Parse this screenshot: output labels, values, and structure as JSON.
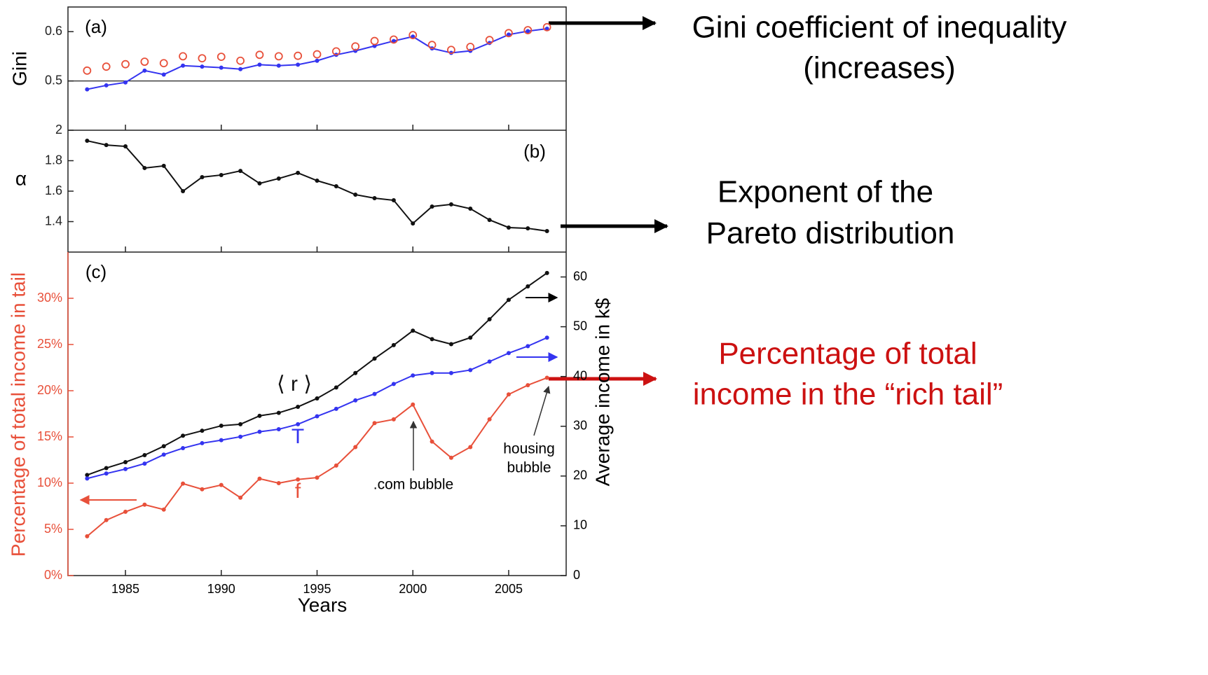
{
  "chart_data": [
    {
      "type": "line",
      "label": "(a)",
      "ylabel": "Gini",
      "x": [
        1983,
        1984,
        1985,
        1986,
        1987,
        1988,
        1989,
        1990,
        1991,
        1992,
        1993,
        1994,
        1995,
        1996,
        1997,
        1998,
        1999,
        2000,
        2001,
        2002,
        2003,
        2004,
        2005,
        2006,
        2007
      ],
      "xlim": [
        1982,
        2008
      ],
      "ylim": [
        0.4,
        0.65
      ],
      "yticks": [
        0.5,
        0.6
      ],
      "reference_line": 0.5,
      "series": [
        {
          "color": "#3434f0",
          "line": true,
          "marker": "dot",
          "values": [
            0.483,
            0.491,
            0.497,
            0.521,
            0.513,
            0.531,
            0.529,
            0.527,
            0.524,
            0.533,
            0.531,
            0.533,
            0.541,
            0.553,
            0.561,
            0.571,
            0.581,
            0.59,
            0.566,
            0.557,
            0.561,
            0.577,
            0.594,
            0.601,
            0.606
          ]
        },
        {
          "color": "#e8503a",
          "line": false,
          "marker": "open-circle",
          "values": [
            0.521,
            0.529,
            0.534,
            0.539,
            0.536,
            0.55,
            0.546,
            0.549,
            0.541,
            0.553,
            0.55,
            0.551,
            0.554,
            0.56,
            0.57,
            0.581,
            0.584,
            0.593,
            0.573,
            0.563,
            0.569,
            0.583,
            0.597,
            0.603,
            0.609
          ]
        }
      ]
    },
    {
      "type": "line",
      "label": "(b)",
      "ylabel": "α",
      "x": [
        1983,
        1984,
        1985,
        1986,
        1987,
        1988,
        1989,
        1990,
        1991,
        1992,
        1993,
        1994,
        1995,
        1996,
        1997,
        1998,
        1999,
        2000,
        2001,
        2002,
        2003,
        2004,
        2005,
        2006,
        2007
      ],
      "xlim": [
        1982,
        2008
      ],
      "ylim": [
        1.2,
        2.0
      ],
      "yticks": [
        1.4,
        1.6,
        1.8,
        2
      ],
      "series": [
        {
          "color": "#111111",
          "line": true,
          "marker": "dot",
          "values": [
            1.931,
            1.903,
            1.894,
            1.752,
            1.766,
            1.6,
            1.692,
            1.706,
            1.733,
            1.651,
            1.683,
            1.72,
            1.669,
            1.632,
            1.577,
            1.554,
            1.54,
            1.388,
            1.499,
            1.513,
            1.485,
            1.411,
            1.361,
            1.356,
            1.338
          ]
        }
      ]
    },
    {
      "type": "line",
      "label": "(c)",
      "ylabel": "Percentage of total income in tail",
      "y2label": "Average income in k$",
      "xlabel": "Years",
      "x": [
        1983,
        1984,
        1985,
        1986,
        1987,
        1988,
        1989,
        1990,
        1991,
        1992,
        1993,
        1994,
        1995,
        1996,
        1997,
        1998,
        1999,
        2000,
        2001,
        2002,
        2003,
        2004,
        2005,
        2006,
        2007
      ],
      "xlim": [
        1982,
        2008
      ],
      "xticks": [
        1985,
        1990,
        1995,
        2000,
        2005
      ],
      "ylim": [
        0,
        35
      ],
      "yticks": [
        {
          "value": 0,
          "label": "0%"
        },
        {
          "value": 5,
          "label": "5%"
        },
        {
          "value": 10,
          "label": "10%"
        },
        {
          "value": 15,
          "label": "15%"
        },
        {
          "value": 20,
          "label": "20%"
        },
        {
          "value": 25,
          "label": "25%"
        },
        {
          "value": 30,
          "label": "30%"
        }
      ],
      "y2lim": [
        0,
        65
      ],
      "y2ticks": [
        0,
        10,
        20,
        30,
        40,
        50,
        60
      ],
      "series": [
        {
          "name": "⟨ r ⟩",
          "color": "#111111",
          "line": true,
          "marker": "dot",
          "axis": "y2",
          "values": [
            20.2,
            21.6,
            22.8,
            24.2,
            26.0,
            28.1,
            29.1,
            30.1,
            30.4,
            32.1,
            32.7,
            33.9,
            35.6,
            37.8,
            40.7,
            43.6,
            46.3,
            49.2,
            47.5,
            46.5,
            47.8,
            51.5,
            55.4,
            58.1,
            60.8
          ]
        },
        {
          "name": "T",
          "color": "#3434f0",
          "line": true,
          "marker": "dot",
          "axis": "y2",
          "values": [
            19.5,
            20.5,
            21.4,
            22.5,
            24.3,
            25.6,
            26.6,
            27.2,
            27.9,
            28.9,
            29.4,
            30.4,
            32.0,
            33.5,
            35.2,
            36.5,
            38.5,
            40.2,
            40.7,
            40.7,
            41.3,
            43.0,
            44.7,
            46.1,
            47.8
          ]
        },
        {
          "name": "f",
          "color": "#e8503a",
          "line": true,
          "marker": "dot",
          "values": [
            4.25,
            6.0,
            6.9,
            7.67,
            7.14,
            9.95,
            9.34,
            9.8,
            8.43,
            10.48,
            10.0,
            10.4,
            10.6,
            11.9,
            13.9,
            16.5,
            16.9,
            18.5,
            14.5,
            12.75,
            13.9,
            16.9,
            19.6,
            20.6,
            21.4
          ]
        }
      ],
      "annotations": [
        [
          ".com bubble"
        ],
        [
          "housing",
          "bubble"
        ]
      ]
    }
  ],
  "callouts": [
    {
      "lines": [
        "Gini coefficient of inequality",
        "(increases)"
      ],
      "color": "#000000"
    },
    {
      "lines": [
        "Exponent of the",
        "Pareto distribution"
      ],
      "color": "#000000"
    },
    {
      "lines": [
        "Percentage of total",
        "income in the “rich tail”"
      ],
      "color": "#cc1111"
    }
  ]
}
